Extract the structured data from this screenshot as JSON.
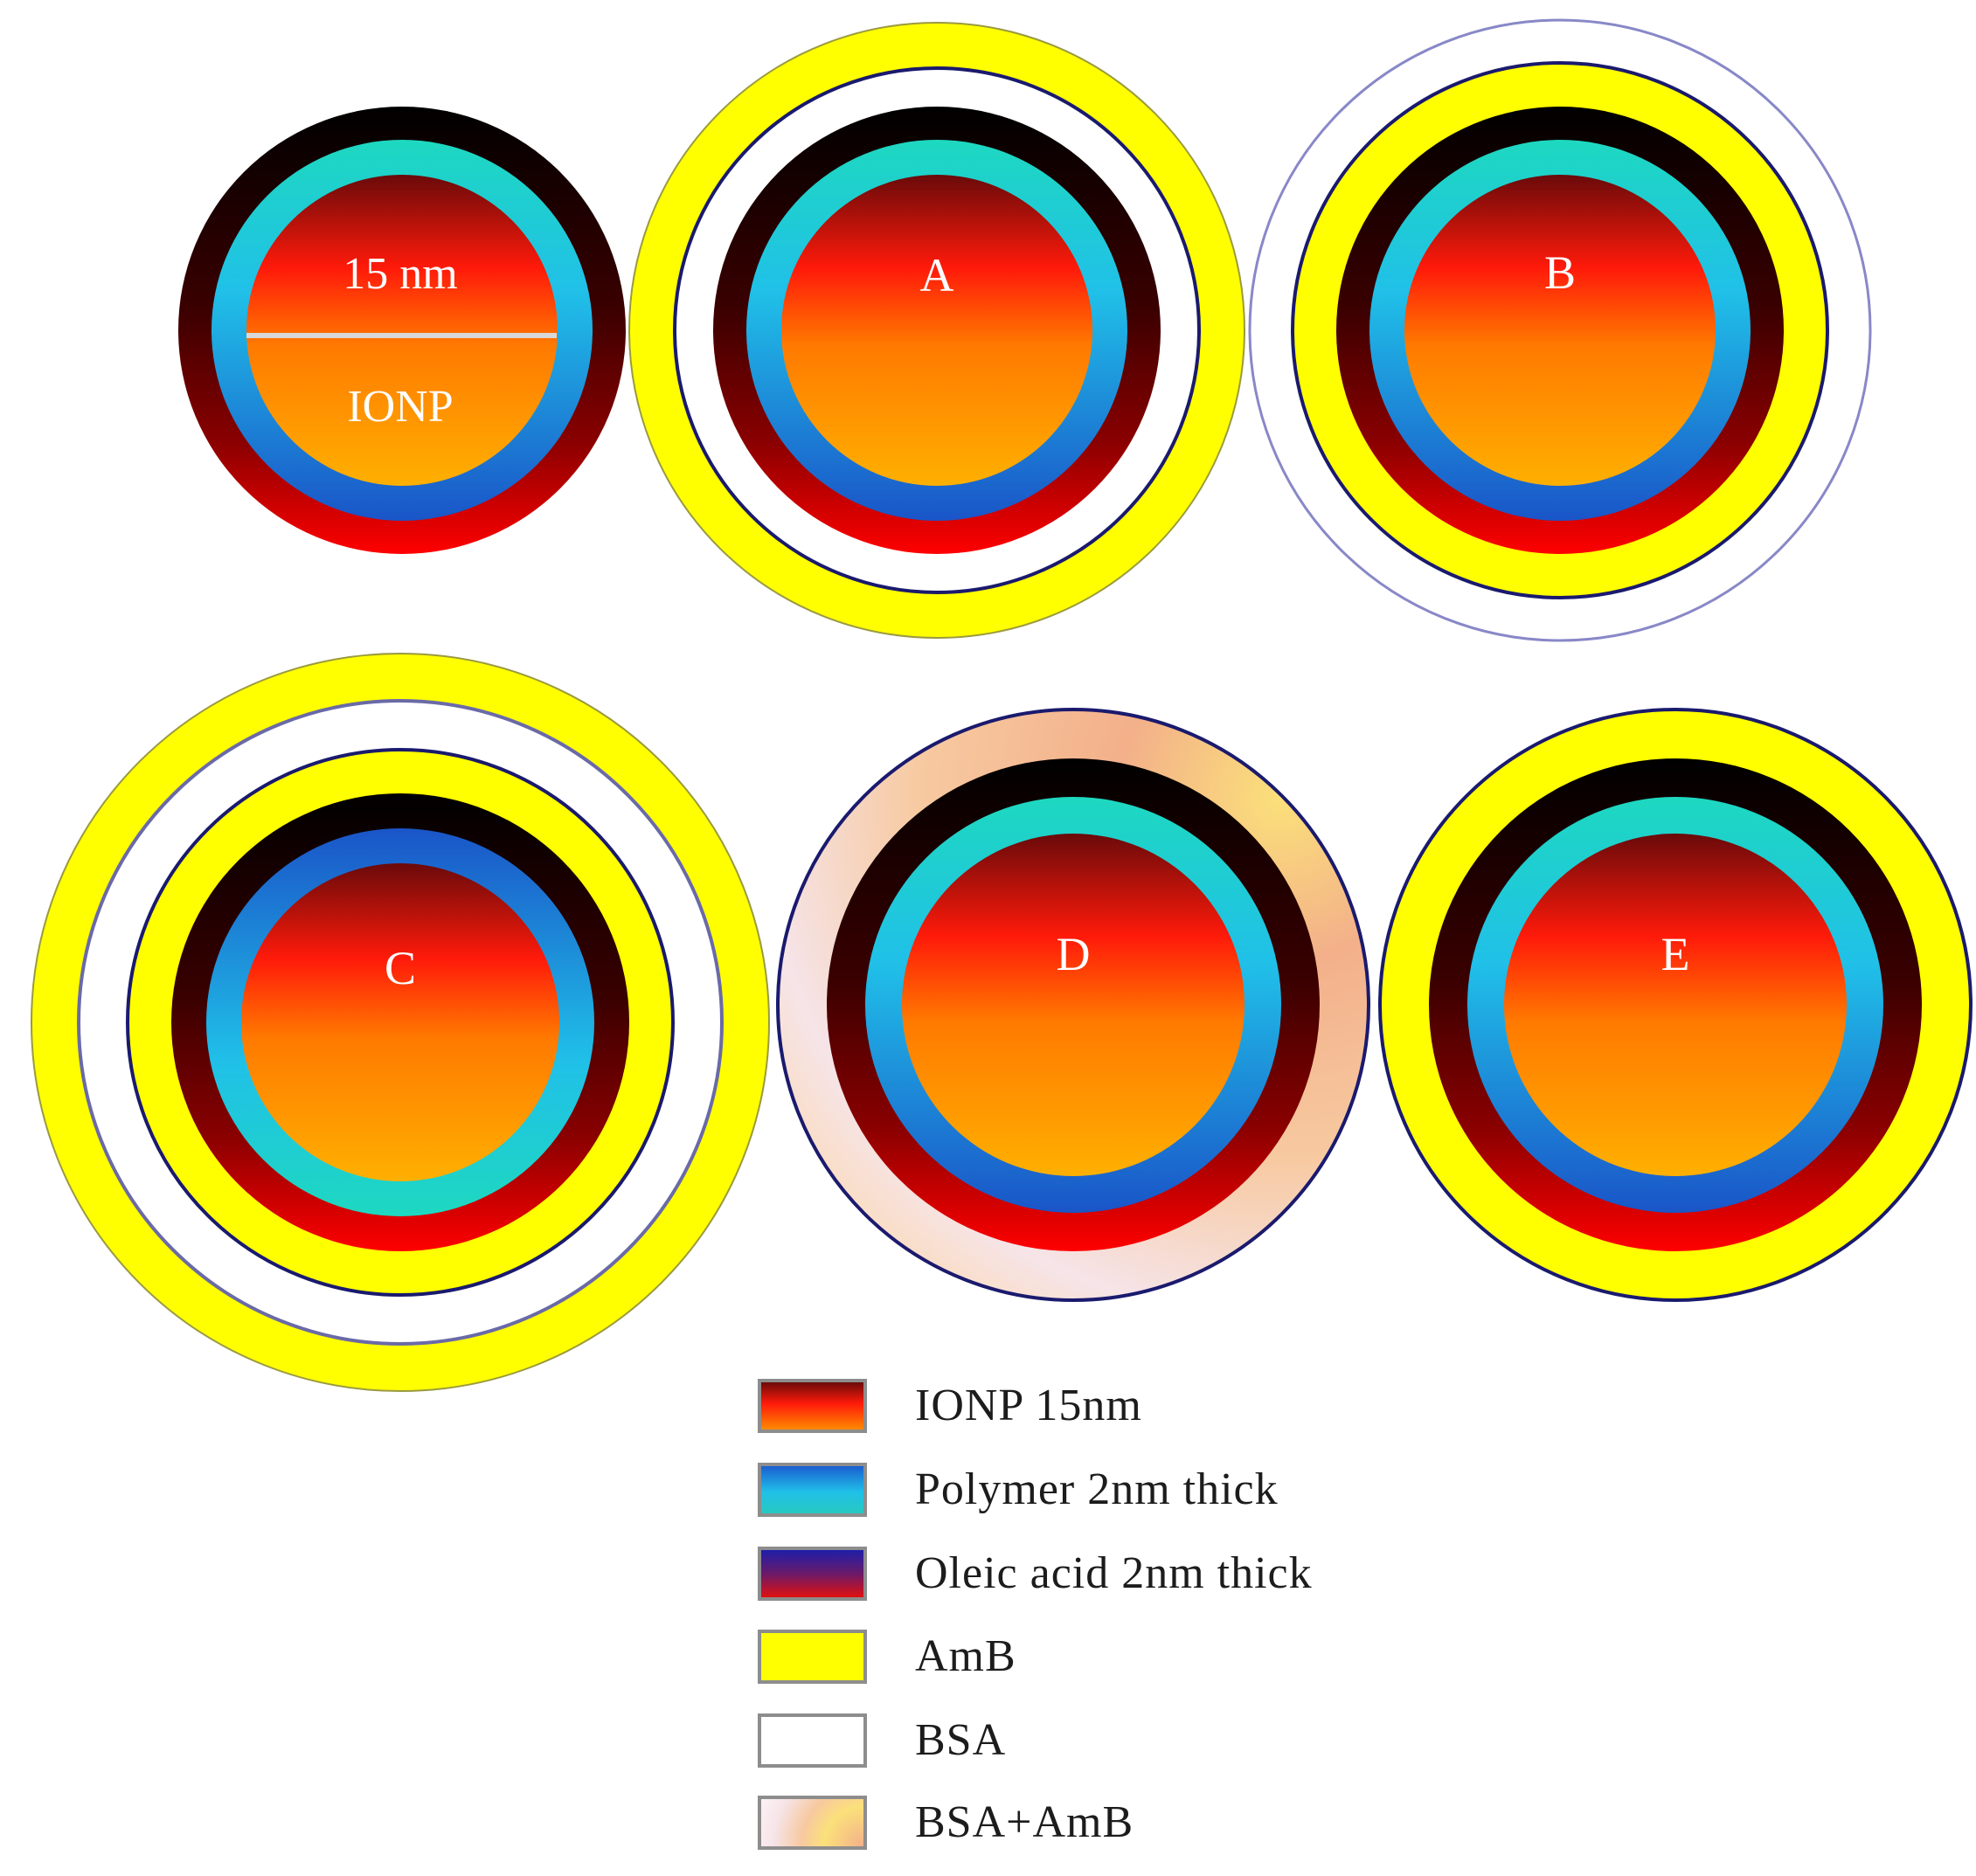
{
  "core_label": {
    "size": "15 nm",
    "name": "IONP"
  },
  "particles": [
    {
      "id": "reference",
      "label": "",
      "layers_outer_to_inner": [
        "oleic-acid",
        "polymer",
        "ionp-core"
      ]
    },
    {
      "id": "A",
      "label": "A",
      "layers_outer_to_inner": [
        "amb",
        "bsa",
        "oleic-acid",
        "polymer",
        "ionp-core"
      ]
    },
    {
      "id": "B",
      "label": "B",
      "layers_outer_to_inner": [
        "bsa",
        "amb",
        "oleic-acid",
        "polymer",
        "ionp-core"
      ]
    },
    {
      "id": "C",
      "label": "C",
      "layers_outer_to_inner": [
        "amb",
        "bsa",
        "amb",
        "oleic-acid",
        "polymer",
        "ionp-core"
      ]
    },
    {
      "id": "D",
      "label": "D",
      "layers_outer_to_inner": [
        "bsa-amb",
        "oleic-acid",
        "polymer",
        "ionp-core"
      ]
    },
    {
      "id": "E",
      "label": "E",
      "layers_outer_to_inner": [
        "amb",
        "oleic-acid",
        "polymer",
        "ionp-core"
      ]
    }
  ],
  "legend": {
    "items": [
      {
        "label": "IONP 15nm"
      },
      {
        "label": "Polymer 2nm thick"
      },
      {
        "label": "Oleic acid 2nm thick"
      },
      {
        "label": "AmB"
      },
      {
        "label": "BSA"
      },
      {
        "label": "BSA+AmB"
      }
    ]
  },
  "colors": {
    "amb": "#ffff00",
    "bsa": "#ffffff",
    "outline": "#1a1a6e",
    "oleic_top": "#000000",
    "oleic_bottom": "#ff0000",
    "polymer_top": "#1ed8c0",
    "polymer_bottom": "#1a5fd0",
    "core_top": "#6a0a0a",
    "core_mid": "#ff1a0a",
    "core_bottom": "#ffb000"
  }
}
